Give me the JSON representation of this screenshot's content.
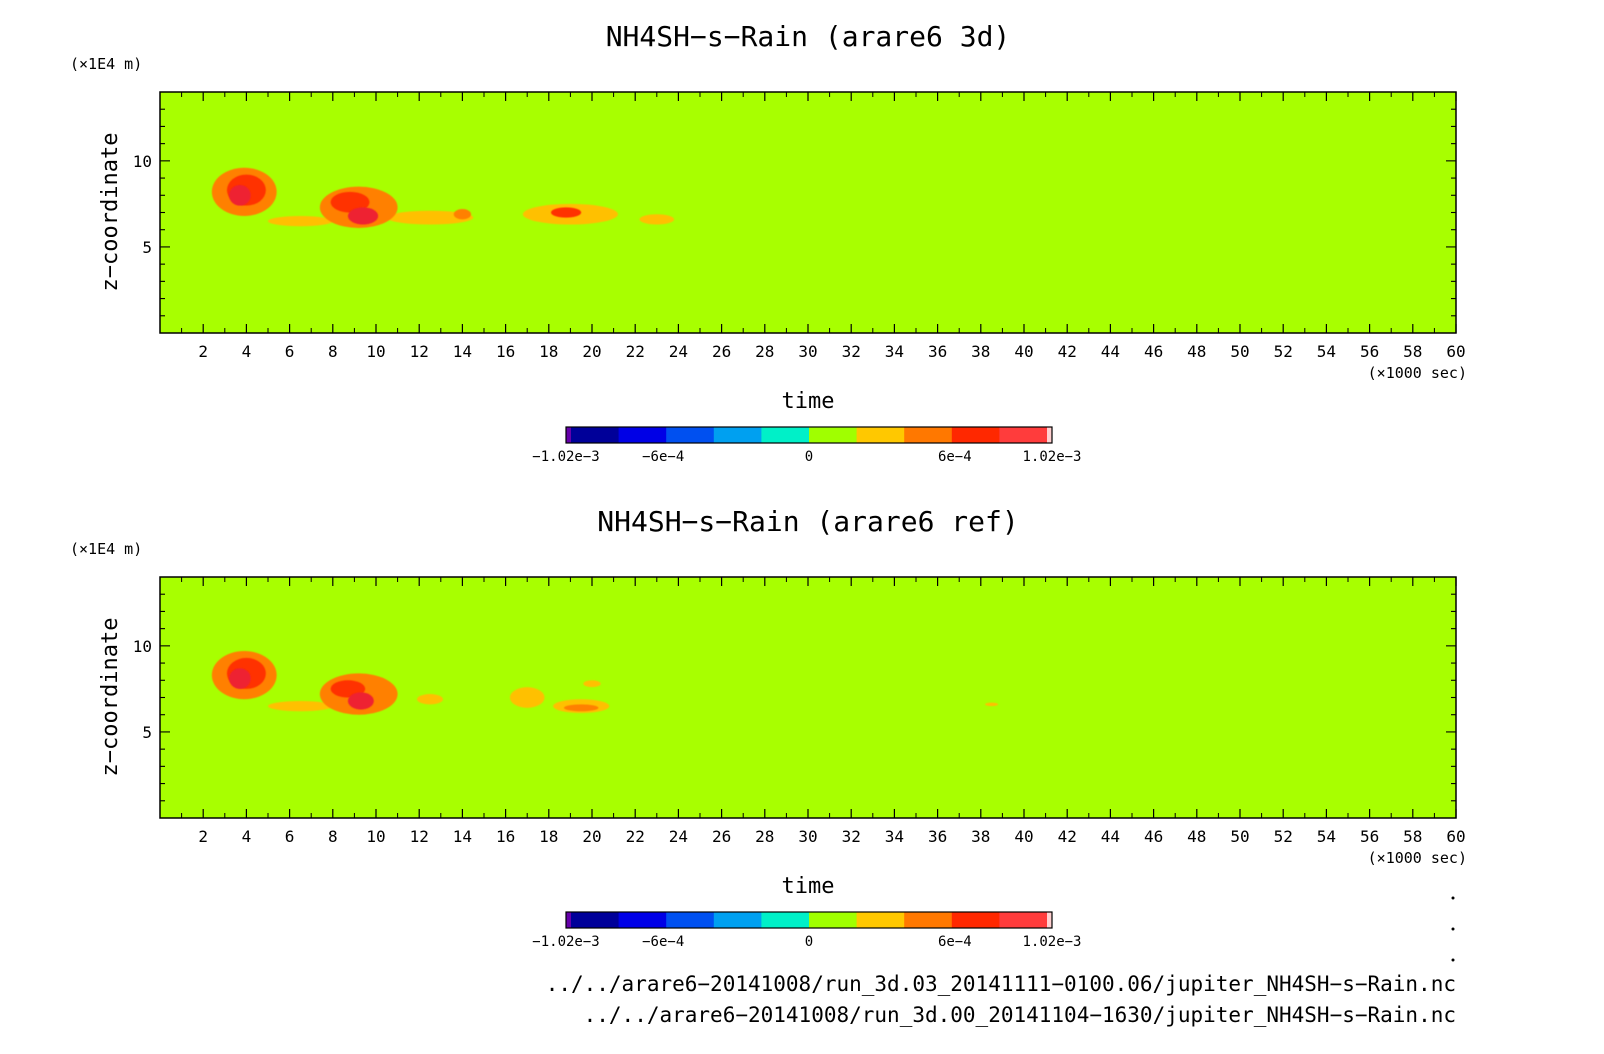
{
  "chart_data": [
    {
      "type": "heatmap",
      "title": "NH4SH−s−Rain (arare6 3d)",
      "xlabel": "time",
      "x_unit": "(×1000 sec)",
      "ylabel": "z−coordinate",
      "y_unit": "(×1E4 m)",
      "xlim": [
        0,
        60
      ],
      "ylim": [
        0,
        14
      ],
      "x_ticks": [
        "2",
        "4",
        "6",
        "8",
        "10",
        "12",
        "14",
        "16",
        "18",
        "20",
        "22",
        "24",
        "26",
        "28",
        "30",
        "32",
        "34",
        "36",
        "38",
        "40",
        "42",
        "44",
        "46",
        "48",
        "50",
        "52",
        "54",
        "56",
        "58",
        "60"
      ],
      "y_ticks": [
        "5",
        "10"
      ],
      "background_value": "0",
      "blobs": [
        {
          "x": 3.9,
          "y": 8.2,
          "level": 2,
          "rx": 1.5,
          "ry": 1.4
        },
        {
          "x": 4.0,
          "y": 8.3,
          "level": 3,
          "rx": 0.9,
          "ry": 0.9
        },
        {
          "x": 3.7,
          "y": 8.0,
          "level": 4,
          "rx": 0.5,
          "ry": 0.6
        },
        {
          "x": 6.5,
          "y": 6.5,
          "level": 1,
          "rx": 1.5,
          "ry": 0.3
        },
        {
          "x": 9.2,
          "y": 7.3,
          "level": 2,
          "rx": 1.8,
          "ry": 1.2
        },
        {
          "x": 8.8,
          "y": 7.6,
          "level": 3,
          "rx": 0.9,
          "ry": 0.6
        },
        {
          "x": 9.4,
          "y": 6.8,
          "level": 4,
          "rx": 0.7,
          "ry": 0.5
        },
        {
          "x": 12.5,
          "y": 6.7,
          "level": 1,
          "rx": 2.0,
          "ry": 0.4
        },
        {
          "x": 14.0,
          "y": 6.9,
          "level": 2,
          "rx": 0.4,
          "ry": 0.3
        },
        {
          "x": 19.0,
          "y": 6.9,
          "level": 1,
          "rx": 2.2,
          "ry": 0.6
        },
        {
          "x": 18.8,
          "y": 7.0,
          "level": 3,
          "rx": 0.7,
          "ry": 0.3
        },
        {
          "x": 23.0,
          "y": 6.6,
          "level": 1,
          "rx": 0.8,
          "ry": 0.3
        }
      ]
    },
    {
      "type": "heatmap",
      "title": "NH4SH−s−Rain (arare6 ref)",
      "xlabel": "time",
      "x_unit": "(×1000 sec)",
      "ylabel": "z−coordinate",
      "y_unit": "(×1E4 m)",
      "xlim": [
        0,
        60
      ],
      "ylim": [
        0,
        14
      ],
      "x_ticks": [
        "2",
        "4",
        "6",
        "8",
        "10",
        "12",
        "14",
        "16",
        "18",
        "20",
        "22",
        "24",
        "26",
        "28",
        "30",
        "32",
        "34",
        "36",
        "38",
        "40",
        "42",
        "44",
        "46",
        "48",
        "50",
        "52",
        "54",
        "56",
        "58",
        "60"
      ],
      "y_ticks": [
        "5",
        "10"
      ],
      "background_value": "0",
      "blobs": [
        {
          "x": 3.9,
          "y": 8.3,
          "level": 2,
          "rx": 1.5,
          "ry": 1.4
        },
        {
          "x": 4.0,
          "y": 8.4,
          "level": 3,
          "rx": 0.9,
          "ry": 0.9
        },
        {
          "x": 3.7,
          "y": 8.1,
          "level": 4,
          "rx": 0.5,
          "ry": 0.6
        },
        {
          "x": 6.5,
          "y": 6.5,
          "level": 1,
          "rx": 1.5,
          "ry": 0.3
        },
        {
          "x": 9.2,
          "y": 7.2,
          "level": 2,
          "rx": 1.8,
          "ry": 1.2
        },
        {
          "x": 8.7,
          "y": 7.5,
          "level": 3,
          "rx": 0.8,
          "ry": 0.5
        },
        {
          "x": 9.3,
          "y": 6.8,
          "level": 4,
          "rx": 0.6,
          "ry": 0.5
        },
        {
          "x": 12.5,
          "y": 6.9,
          "level": 1,
          "rx": 0.6,
          "ry": 0.3
        },
        {
          "x": 17.0,
          "y": 7.0,
          "level": 1,
          "rx": 0.8,
          "ry": 0.6
        },
        {
          "x": 19.5,
          "y": 6.5,
          "level": 1,
          "rx": 1.3,
          "ry": 0.4
        },
        {
          "x": 19.5,
          "y": 6.4,
          "level": 2,
          "rx": 0.8,
          "ry": 0.2
        },
        {
          "x": 20.0,
          "y": 7.8,
          "level": 1,
          "rx": 0.4,
          "ry": 0.2
        },
        {
          "x": 38.5,
          "y": 6.6,
          "level": 1,
          "rx": 0.3,
          "ry": 0.1
        }
      ]
    }
  ],
  "colorbar": {
    "colors": [
      "#000099",
      "#0000e6",
      "#0050f0",
      "#00a0f0",
      "#00f0c8",
      "#a0ff00",
      "#ffc800",
      "#ff7800",
      "#ff2800",
      "#ff3c3c"
    ],
    "end_colors": [
      "#6600aa",
      "#ffd0d0"
    ],
    "labels": [
      "−1.02e−3",
      "−6e−4",
      "0",
      "6e−4",
      "1.02e−3"
    ],
    "label_positions": [
      0,
      0.2,
      0.5,
      0.8,
      1
    ]
  },
  "level_colors": [
    "#a8ff00",
    "#ffc000",
    "#ff8000",
    "#ff3000",
    "#ee2030"
  ],
  "file_paths": [
    "../../arare6−20141008/run_3d.03_20141111−0100.06/jupiter_NH4SH−s−Rain.nc",
    "../../arare6−20141008/run_3d.00_20141104−1630/jupiter_NH4SH−s−Rain.nc"
  ]
}
